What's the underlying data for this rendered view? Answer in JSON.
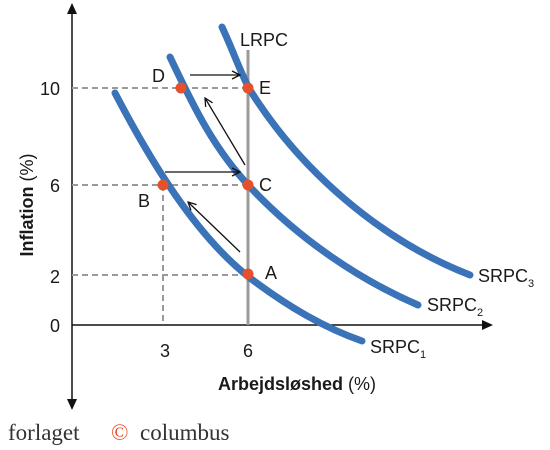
{
  "axes": {
    "y_label": "Inflation",
    "y_unit": "(%)",
    "x_label": "Arbejdsløshed",
    "x_unit": "(%)",
    "y_ticks": [
      "10",
      "6",
      "2",
      "0"
    ],
    "x_ticks": [
      "3",
      "6"
    ]
  },
  "lrpc": "LRPC",
  "curves": [
    {
      "name": "SRPC",
      "sub": "1"
    },
    {
      "name": "SRPC",
      "sub": "2"
    },
    {
      "name": "SRPC",
      "sub": "3"
    }
  ],
  "points": [
    "A",
    "B",
    "C",
    "D",
    "E"
  ],
  "footer": {
    "left": "forlaget",
    "symbol": "©",
    "right": "columbus"
  }
}
